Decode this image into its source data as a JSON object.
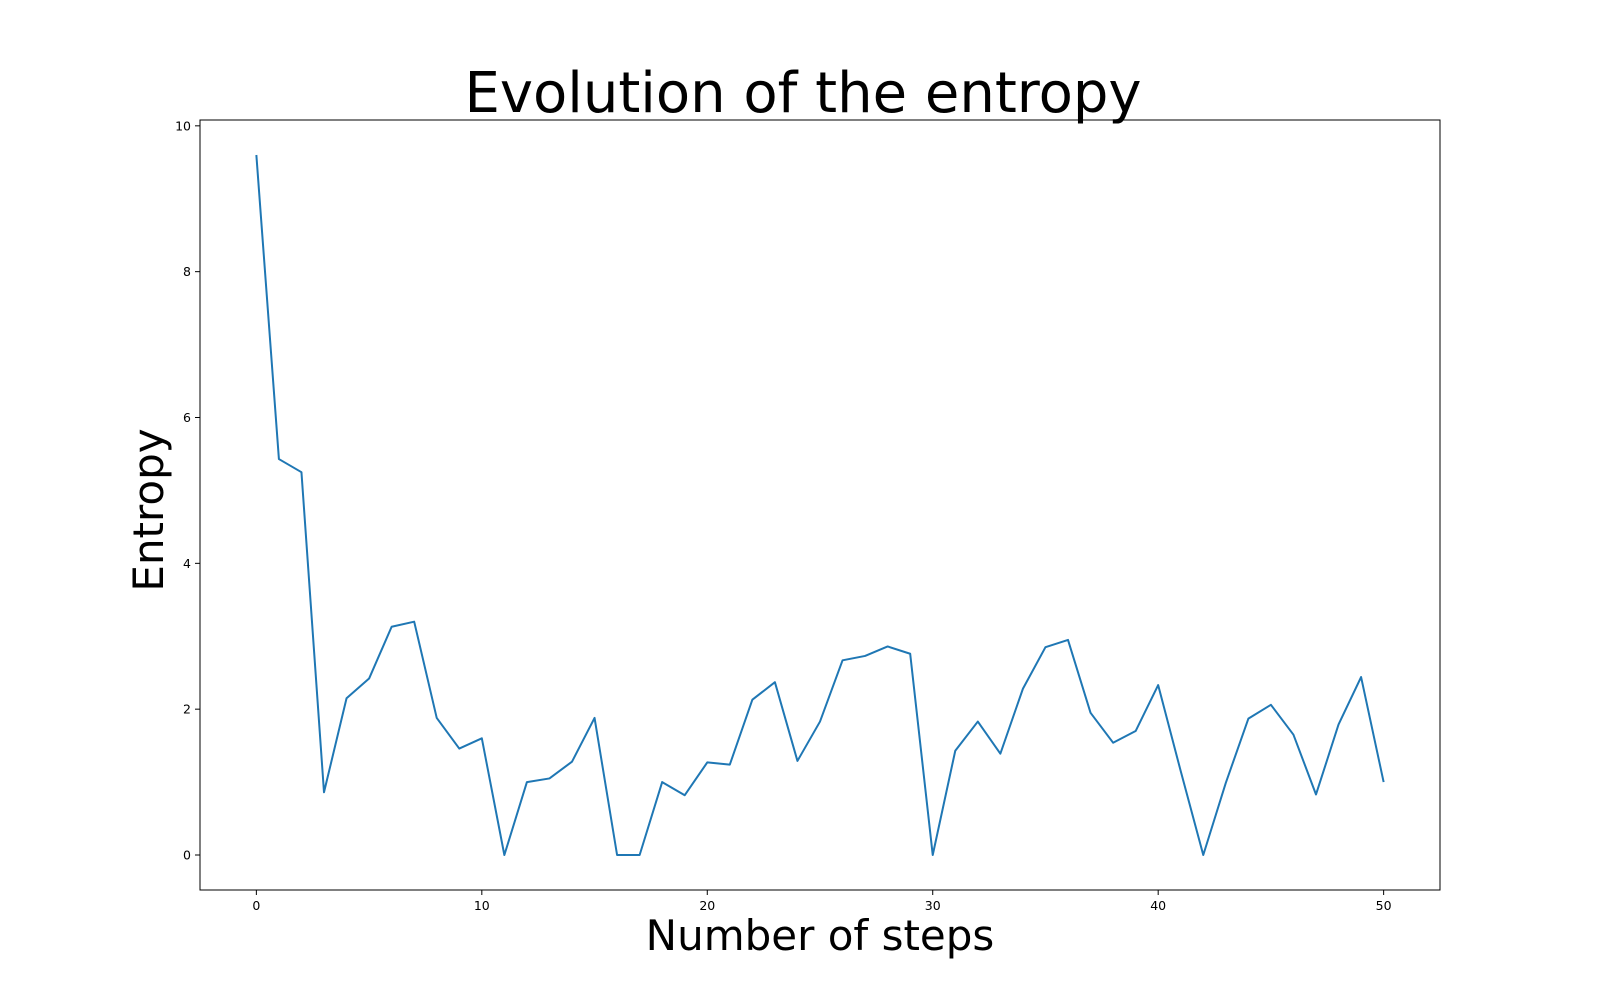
{
  "chart_data": {
    "type": "line",
    "title": "Evolution of the entropy",
    "xlabel": "Number of steps",
    "ylabel": "Entropy",
    "xlim": [
      -2.5,
      52.5
    ],
    "ylim": [
      -0.48,
      10.08
    ],
    "x_ticks": [
      0,
      10,
      20,
      30,
      40,
      50
    ],
    "y_ticks": [
      0,
      2,
      4,
      6,
      8,
      10
    ],
    "grid": false,
    "legend": "none",
    "series": [
      {
        "color": "#1f77b4",
        "x": [
          0,
          1,
          2,
          3,
          4,
          5,
          6,
          7,
          8,
          9,
          10,
          11,
          12,
          13,
          14,
          15,
          16,
          17,
          18,
          19,
          20,
          21,
          22,
          23,
          24,
          25,
          26,
          27,
          28,
          29,
          30,
          31,
          32,
          33,
          34,
          35,
          36,
          37,
          38,
          39,
          40,
          41,
          42,
          43,
          44,
          45,
          46,
          47,
          48,
          49,
          50
        ],
        "values": [
          9.6,
          5.43,
          5.25,
          0.86,
          2.15,
          2.42,
          3.13,
          3.2,
          1.88,
          1.46,
          1.6,
          0.0,
          1.0,
          1.05,
          1.28,
          1.88,
          0.0,
          0.0,
          1.0,
          0.82,
          1.27,
          1.24,
          2.13,
          2.37,
          1.29,
          1.83,
          2.67,
          2.73,
          2.86,
          2.76,
          0.0,
          1.43,
          1.83,
          1.39,
          2.28,
          2.85,
          2.95,
          1.95,
          1.54,
          1.7,
          2.33,
          1.15,
          0.0,
          0.99,
          1.87,
          2.06,
          1.65,
          0.83,
          1.79,
          2.44,
          1.0
        ]
      }
    ]
  }
}
